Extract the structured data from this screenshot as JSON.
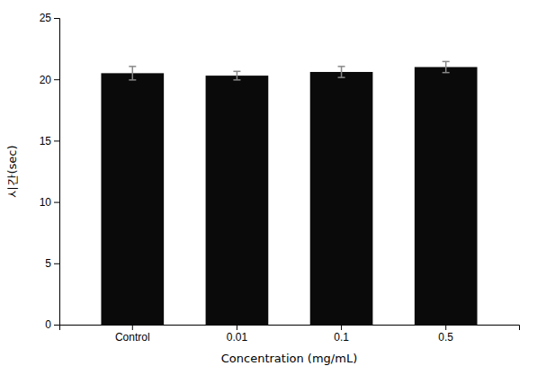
{
  "chart_data": {
    "type": "bar",
    "categories": [
      "Control",
      "0.01",
      "0.1",
      "0.5"
    ],
    "values": [
      20.5,
      20.3,
      20.6,
      21.0
    ],
    "errors": [
      0.55,
      0.35,
      0.45,
      0.45
    ],
    "color": "#0a0a0a",
    "xlabel": "Concentration (mg/mL)",
    "ylabel": "시간(sec)",
    "ylim": [
      0,
      25
    ],
    "yticks": [
      0,
      5,
      10,
      15,
      20,
      25
    ],
    "grid": false
  }
}
